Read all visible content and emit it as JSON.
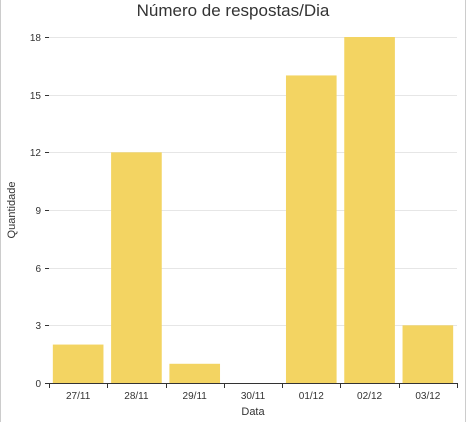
{
  "chart_data": {
    "type": "bar",
    "title": "Número de respostas/Dia",
    "xlabel": "Data",
    "ylabel": "Quantidade",
    "categories": [
      "27/11",
      "28/11",
      "29/11",
      "30/11",
      "01/12",
      "02/12",
      "03/12"
    ],
    "values": [
      2,
      12,
      1,
      0,
      16,
      18,
      3
    ],
    "ylim": [
      0,
      18
    ],
    "yticks": [
      "0",
      "3",
      "6",
      "9",
      "12",
      "15",
      "18"
    ],
    "grid": true,
    "bar_color": "#f3d462"
  }
}
